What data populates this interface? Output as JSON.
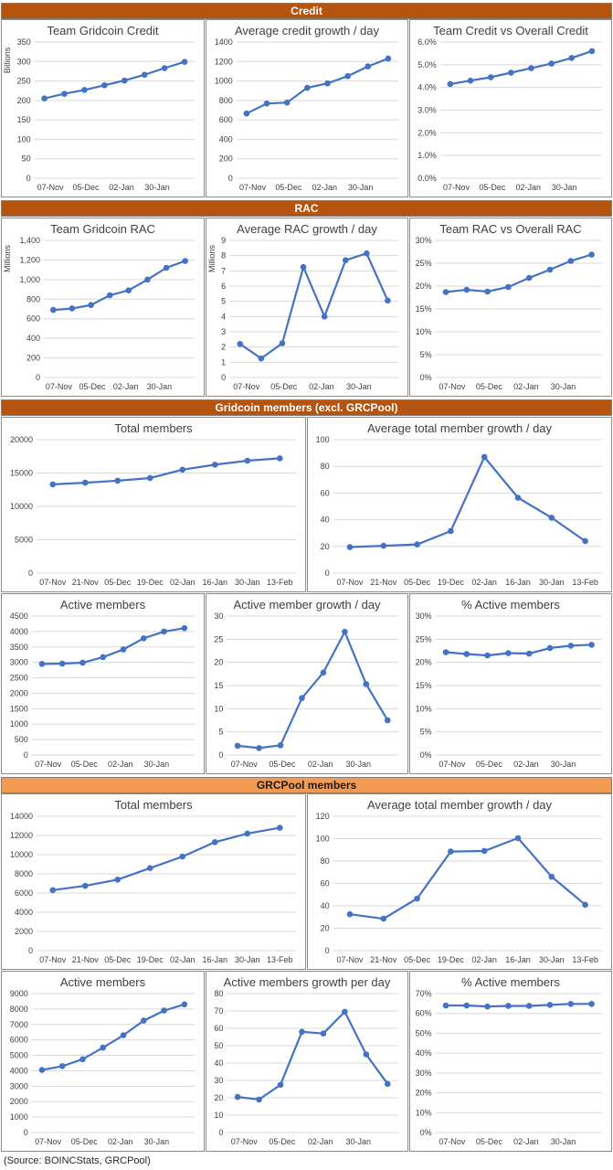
{
  "sections": [
    {
      "name": "Credit",
      "style": "dark"
    },
    {
      "name": "RAC",
      "style": "dark"
    },
    {
      "name": "Gridcoin members (excl. GRCPool)",
      "style": "dark"
    },
    {
      "name": "GRCPool members",
      "style": "light"
    }
  ],
  "source": "(Source: BOINCStats, GRCPool)",
  "colors": {
    "series": "#4472c4",
    "dark_band": "#b4540f",
    "light_band": "#f29a52",
    "grid": "#d9d9d9"
  },
  "chart_data": [
    {
      "type": "line",
      "title": "Team Gridcoin Credit",
      "unit_label": "Billions",
      "ylim": [
        0,
        350
      ],
      "yticks": [
        0,
        50,
        100,
        150,
        200,
        250,
        300,
        350
      ],
      "xticks": [
        "07-Nov",
        "05-Dec",
        "02-Jan",
        "30-Jan"
      ],
      "values": [
        205,
        217,
        227,
        239,
        251,
        266,
        283,
        299
      ],
      "grid": true
    },
    {
      "type": "line",
      "title": "Average credit growth / day",
      "unit_label": "",
      "ylim": [
        0,
        1400
      ],
      "yticks": [
        0,
        200,
        400,
        600,
        800,
        1000,
        1200,
        1400
      ],
      "xticks": [
        "07-Nov",
        "05-Dec",
        "02-Jan",
        "30-Jan"
      ],
      "values": [
        665,
        768,
        778,
        930,
        975,
        1050,
        1150,
        1230
      ],
      "grid": true
    },
    {
      "type": "line",
      "title": "Team Credit vs Overall Credit",
      "unit_label": "",
      "ylim": [
        0,
        6
      ],
      "yticks": [
        0,
        1,
        2,
        3,
        4,
        5,
        6
      ],
      "ytick_format": "pct1",
      "xticks": [
        "07-Nov",
        "05-Dec",
        "02-Jan",
        "30-Jan"
      ],
      "values": [
        4.15,
        4.3,
        4.45,
        4.65,
        4.85,
        5.05,
        5.3,
        5.6
      ],
      "grid": true
    },
    {
      "type": "line",
      "title": "Team Gridcoin RAC",
      "unit_label": "Millions",
      "ylim": [
        0,
        1400
      ],
      "yticks": [
        0,
        200,
        400,
        600,
        800,
        1000,
        1200,
        1400
      ],
      "ytick_format": "comma",
      "xticks": [
        "07-Nov",
        "05-Dec",
        "02-Jan",
        "30-Jan"
      ],
      "values": [
        690,
        705,
        740,
        840,
        890,
        1000,
        1120,
        1190
      ],
      "grid": true
    },
    {
      "type": "line",
      "title": "Average RAC growth / day",
      "unit_label": "Millions",
      "ylim": [
        0,
        9
      ],
      "yticks": [
        0,
        1,
        2,
        3,
        4,
        5,
        6,
        7,
        8,
        9
      ],
      "xticks": [
        "07-Nov",
        "05-Dec",
        "02-Jan",
        "30-Jan"
      ],
      "values": [
        2.2,
        1.25,
        2.25,
        7.25,
        4,
        7.7,
        8.15,
        5.05
      ],
      "grid": true
    },
    {
      "type": "line",
      "title": "Team RAC vs Overall RAC",
      "unit_label": "",
      "ylim": [
        0,
        30
      ],
      "yticks": [
        0,
        5,
        10,
        15,
        20,
        25,
        30
      ],
      "ytick_format": "pct0",
      "xticks": [
        "07-Nov",
        "05-Dec",
        "02-Jan",
        "30-Jan"
      ],
      "values": [
        18.7,
        19.2,
        18.8,
        19.8,
        21.8,
        23.6,
        25.5,
        26.9
      ],
      "grid": true
    },
    {
      "type": "line",
      "title": "Total members",
      "unit_label": "",
      "ylim": [
        0,
        20000
      ],
      "yticks": [
        0,
        5000,
        10000,
        15000,
        20000
      ],
      "xticks": [
        "07-Nov",
        "21-Nov",
        "05-Dec",
        "19-Dec",
        "02-Jan",
        "16-Jan",
        "30-Jan",
        "13-Feb"
      ],
      "values": [
        13300,
        13550,
        13850,
        14250,
        15500,
        16250,
        16850,
        17200
      ],
      "grid": true
    },
    {
      "type": "line",
      "title": "Average total member growth / day",
      "unit_label": "",
      "ylim": [
        0,
        100
      ],
      "yticks": [
        0,
        20,
        40,
        60,
        80,
        100
      ],
      "xticks": [
        "07-Nov",
        "21-Nov",
        "05-Dec",
        "19-Dec",
        "02-Jan",
        "16-Jan",
        "30-Jan",
        "13-Feb"
      ],
      "values": [
        19.5,
        20.5,
        21.5,
        31.5,
        87,
        56.5,
        41.5,
        24
      ],
      "grid": true
    },
    {
      "type": "line",
      "title": "Active members",
      "unit_label": "",
      "ylim": [
        0,
        4500
      ],
      "yticks": [
        0,
        500,
        1000,
        1500,
        2000,
        2500,
        3000,
        3500,
        4000,
        4500
      ],
      "xticks": [
        "07-Nov",
        "05-Dec",
        "02-Jan",
        "30-Jan"
      ],
      "values": [
        2950,
        2960,
        2990,
        3170,
        3420,
        3780,
        4000,
        4110
      ],
      "grid": true
    },
    {
      "type": "line",
      "title": "Active member growth / day",
      "unit_label": "",
      "ylim": [
        0,
        30
      ],
      "yticks": [
        0,
        5,
        10,
        15,
        20,
        25,
        30
      ],
      "xticks": [
        "07-Nov",
        "05-Dec",
        "02-Jan",
        "30-Jan"
      ],
      "values": [
        2,
        1.5,
        2.1,
        12.3,
        17.8,
        26.6,
        15.3,
        7.5
      ],
      "grid": true
    },
    {
      "type": "line",
      "title": "% Active members",
      "unit_label": "",
      "ylim": [
        0,
        30
      ],
      "yticks": [
        0,
        5,
        10,
        15,
        20,
        25,
        30
      ],
      "ytick_format": "pct0",
      "xticks": [
        "07-Nov",
        "05-Dec",
        "02-Jan",
        "30-Jan"
      ],
      "values": [
        22.2,
        21.8,
        21.5,
        22,
        21.9,
        23.1,
        23.6,
        23.8
      ],
      "grid": true
    },
    {
      "type": "line",
      "title": "Total members",
      "unit_label": "",
      "ylim": [
        0,
        14000
      ],
      "yticks": [
        0,
        2000,
        4000,
        6000,
        8000,
        10000,
        12000,
        14000
      ],
      "xticks": [
        "07-Nov",
        "21-Nov",
        "05-Dec",
        "19-Dec",
        "02-Jan",
        "16-Jan",
        "30-Jan",
        "13-Feb"
      ],
      "values": [
        6300,
        6750,
        7400,
        8600,
        9800,
        11300,
        12200,
        12800
      ],
      "grid": true
    },
    {
      "type": "line",
      "title": "Average total member growth / day",
      "unit_label": "",
      "ylim": [
        0,
        120
      ],
      "yticks": [
        0,
        20,
        40,
        60,
        80,
        100,
        120
      ],
      "xticks": [
        "07-Nov",
        "21-Nov",
        "05-Dec",
        "19-Dec",
        "02-Jan",
        "16-Jan",
        "30-Jan",
        "13-Feb"
      ],
      "values": [
        32.5,
        28.5,
        46.5,
        88.5,
        89,
        100.5,
        66,
        41
      ],
      "grid": true
    },
    {
      "type": "line",
      "title": "Active members",
      "unit_label": "",
      "ylim": [
        0,
        9000
      ],
      "yticks": [
        0,
        1000,
        2000,
        3000,
        4000,
        5000,
        6000,
        7000,
        8000,
        9000
      ],
      "xticks": [
        "07-Nov",
        "05-Dec",
        "02-Jan",
        "30-Jan"
      ],
      "values": [
        4050,
        4300,
        4750,
        5500,
        6300,
        7250,
        7900,
        8300
      ],
      "grid": true
    },
    {
      "type": "line",
      "title": "Active members growth per day",
      "unit_label": "",
      "ylim": [
        0,
        80
      ],
      "yticks": [
        0,
        10,
        20,
        30,
        40,
        50,
        60,
        70,
        80
      ],
      "xticks": [
        "07-Nov",
        "05-Dec",
        "02-Jan",
        "30-Jan"
      ],
      "values": [
        20.5,
        19,
        27.5,
        58,
        57,
        69.5,
        45,
        28
      ],
      "grid": true
    },
    {
      "type": "line",
      "title": "% Active members",
      "unit_label": "",
      "ylim": [
        0,
        70
      ],
      "yticks": [
        0,
        10,
        20,
        30,
        40,
        50,
        60,
        70
      ],
      "ytick_format": "pct0",
      "xticks": [
        "07-Nov",
        "05-Dec",
        "02-Jan",
        "30-Jan"
      ],
      "values": [
        64,
        64,
        63.5,
        63.8,
        63.8,
        64.3,
        64.8,
        64.8
      ],
      "grid": true
    }
  ]
}
